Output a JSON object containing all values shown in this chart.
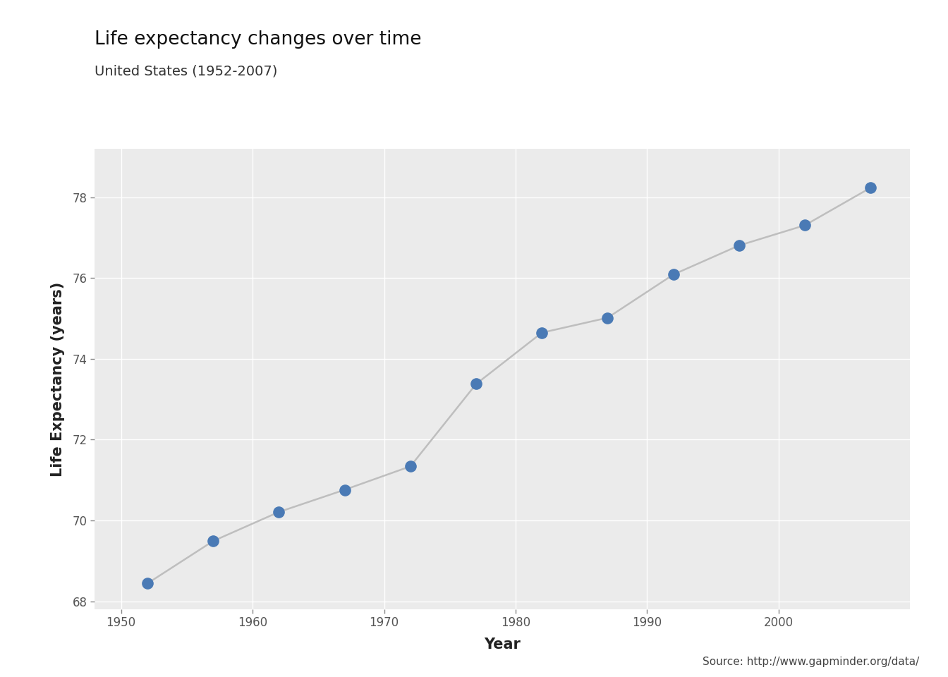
{
  "title": "Life expectancy changes over time",
  "subtitle": "United States (1952-2007)",
  "xlabel": "Year",
  "ylabel": "Life Expectancy (years)",
  "source": "Source: http://www.gapminder.org/data/",
  "years": [
    1952,
    1957,
    1962,
    1967,
    1972,
    1977,
    1982,
    1987,
    1992,
    1997,
    2002,
    2007
  ],
  "life_exp": [
    68.44,
    69.49,
    70.21,
    70.76,
    71.34,
    73.38,
    74.65,
    75.02,
    76.09,
    76.81,
    77.31,
    78.24
  ],
  "line_color": "#bebebe",
  "point_color": "#4a7ab5",
  "plot_bg_color": "#ebebeb",
  "fig_bg_color": "#ffffff",
  "grid_color": "#ffffff",
  "title_fontsize": 19,
  "subtitle_fontsize": 14,
  "axis_label_fontsize": 15,
  "tick_fontsize": 12,
  "source_fontsize": 11,
  "point_size": 120,
  "line_width": 1.8,
  "xlim": [
    1948,
    2010
  ],
  "ylim": [
    67.8,
    79.2
  ],
  "xticks": [
    1950,
    1960,
    1970,
    1980,
    1990,
    2000
  ],
  "yticks": [
    68,
    70,
    72,
    74,
    76,
    78
  ]
}
